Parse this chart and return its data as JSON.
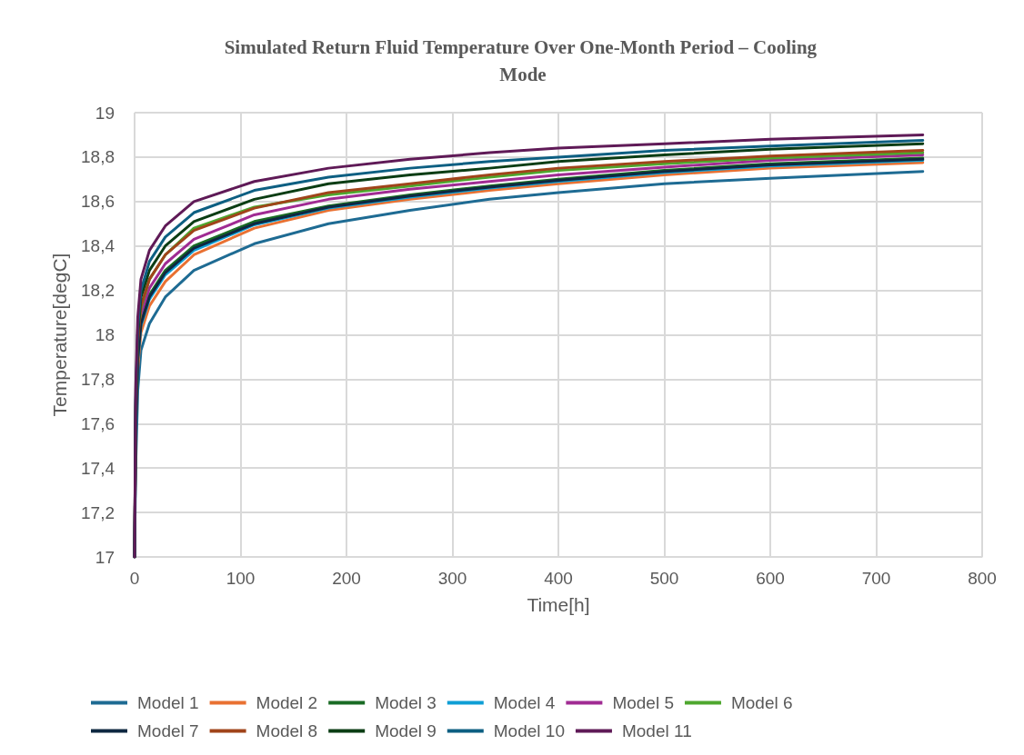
{
  "chart_data": {
    "type": "line",
    "title": "Simulated Return Fluid Temperature Over One-Month Period – Cooling Mode",
    "xlabel": "Time[h]",
    "ylabel": "Temperature[degC]",
    "x": [
      0,
      1,
      3,
      6,
      14,
      29,
      56,
      113,
      183,
      260,
      335,
      400,
      500,
      600,
      744
    ],
    "xlim": [
      0,
      800
    ],
    "xticks": [
      0,
      100,
      200,
      300,
      400,
      500,
      600,
      700,
      800
    ],
    "ylim": [
      17,
      19
    ],
    "yticks": [
      17,
      {
        "value": 17.2,
        "label": "17,2"
      },
      {
        "value": 17.4,
        "label": "17,4"
      },
      {
        "value": 17.6,
        "label": "17,6"
      },
      {
        "value": 17.8,
        "label": "17,8"
      },
      18,
      {
        "value": 18.2,
        "label": "18,2"
      },
      {
        "value": 18.4,
        "label": "18,4"
      },
      {
        "value": 18.6,
        "label": "18,6"
      },
      {
        "value": 18.8,
        "label": "18,8"
      },
      19
    ],
    "grid": true,
    "legend": "bottom",
    "marker": "none",
    "line_style": "solid",
    "series": [
      {
        "name": "Model 1",
        "color": "#1e6b93",
        "values": [
          17.0,
          17.4,
          17.75,
          17.93,
          18.05,
          18.17,
          18.29,
          18.41,
          18.5,
          18.56,
          18.61,
          18.64,
          18.68,
          18.705,
          18.735
        ]
      },
      {
        "name": "Model 2",
        "color": "#e97132",
        "values": [
          null,
          null,
          17.85,
          18.01,
          18.13,
          18.24,
          18.36,
          18.48,
          18.56,
          18.61,
          18.65,
          18.68,
          18.72,
          18.75,
          18.775
        ]
      },
      {
        "name": "Model 3",
        "color": "#196b24",
        "values": [
          17.0,
          17.58,
          17.9,
          18.06,
          18.18,
          18.29,
          18.4,
          18.51,
          18.58,
          18.63,
          18.67,
          18.7,
          18.74,
          18.77,
          18.795
        ]
      },
      {
        "name": "Model 4",
        "color": "#0f9ed5",
        "values": [
          null,
          null,
          17.88,
          18.04,
          18.16,
          18.27,
          18.38,
          18.495,
          18.57,
          18.62,
          18.66,
          18.69,
          18.73,
          18.76,
          18.785
        ]
      },
      {
        "name": "Model 5",
        "color": "#a02b93",
        "values": [
          17.0,
          17.6,
          17.93,
          18.09,
          18.21,
          18.32,
          18.43,
          18.54,
          18.61,
          18.655,
          18.69,
          18.72,
          18.755,
          18.785,
          18.81
        ]
      },
      {
        "name": "Model 6",
        "color": "#4ea72e",
        "values": [
          null,
          null,
          17.96,
          18.12,
          18.25,
          18.36,
          18.48,
          18.575,
          18.63,
          18.67,
          18.71,
          18.74,
          18.77,
          18.795,
          18.82
        ]
      },
      {
        "name": "Model 7",
        "color": "#0e2841",
        "values": [
          17.0,
          17.57,
          17.89,
          18.05,
          18.17,
          18.28,
          18.39,
          18.5,
          18.575,
          18.625,
          18.665,
          18.695,
          18.735,
          18.765,
          18.79
        ]
      },
      {
        "name": "Model 8",
        "color": "#a0441a",
        "values": [
          17.0,
          17.65,
          17.97,
          18.13,
          18.25,
          18.36,
          18.47,
          18.57,
          18.64,
          18.68,
          18.72,
          18.75,
          18.78,
          18.805,
          18.83
        ]
      },
      {
        "name": "Model 9",
        "color": "#0b3d14",
        "values": [
          17.0,
          17.68,
          18.0,
          18.17,
          18.29,
          18.4,
          18.51,
          18.61,
          18.68,
          18.72,
          18.75,
          18.78,
          18.81,
          18.835,
          18.86
        ]
      },
      {
        "name": "Model 10",
        "color": "#0d5f82",
        "values": [
          17.0,
          17.7,
          18.03,
          18.2,
          18.33,
          18.44,
          18.55,
          18.65,
          18.71,
          18.75,
          18.78,
          18.8,
          18.83,
          18.85,
          18.875
        ]
      },
      {
        "name": "Model 11",
        "color": "#5f1a57",
        "values": [
          17.0,
          17.75,
          18.08,
          18.25,
          18.38,
          18.49,
          18.6,
          18.69,
          18.75,
          18.79,
          18.82,
          18.84,
          18.86,
          18.88,
          18.9
        ]
      }
    ]
  }
}
